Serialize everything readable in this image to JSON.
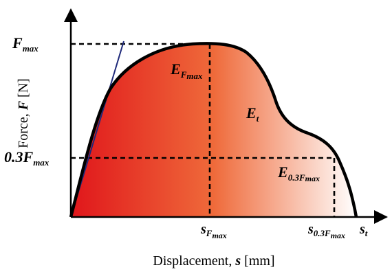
{
  "colors": {
    "fill_start": "#e0161b",
    "fill_mid": "#ef6a3a",
    "fill_end": "#ffffff",
    "curve": "#000000",
    "tangent": "#1f2a7a",
    "axis": "#000000"
  },
  "y_axis": {
    "label_prefix": "Force, ",
    "label_symbol": "F",
    "label_unit": " [N]"
  },
  "x_axis": {
    "label_prefix": "Displacement, ",
    "label_symbol": "s",
    "label_unit": " [mm]"
  },
  "y_ticks": {
    "fmax": {
      "main": "F",
      "sub": "max"
    },
    "f03": {
      "main": "0.3F",
      "sub": "max"
    }
  },
  "x_ticks": {
    "s_fmax": {
      "main": "s",
      "sub": "F",
      "subsub": "max"
    },
    "s_03": {
      "main": "s",
      "sub": "0.3F",
      "subsub": "max"
    },
    "s_t": {
      "main": "s",
      "sub": "t"
    }
  },
  "regions": {
    "e_fmax": {
      "main": "E",
      "sub": "F",
      "subsub": "max"
    },
    "e_t": {
      "main": "E",
      "sub": "t"
    },
    "e_03": {
      "main": "E",
      "sub": "0.3F",
      "subsub": "max"
    }
  }
}
